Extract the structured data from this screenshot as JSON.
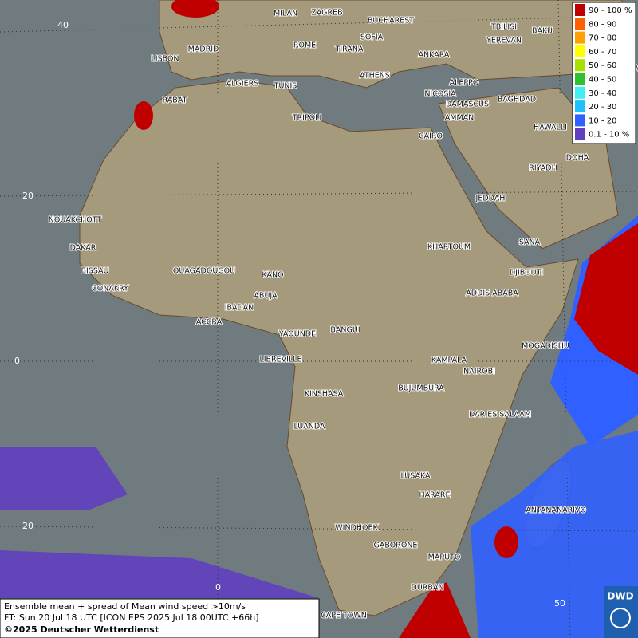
{
  "legend": {
    "entries": [
      {
        "label": "90 - 100 %",
        "color": "#c00000"
      },
      {
        "label": "80 - 90",
        "color": "#ff6000"
      },
      {
        "label": "70 - 80",
        "color": "#ffa000"
      },
      {
        "label": "60 - 70",
        "color": "#ffff00"
      },
      {
        "label": "50 - 60",
        "color": "#a8e000"
      },
      {
        "label": "40 - 50",
        "color": "#30c030"
      },
      {
        "label": "30 - 40",
        "color": "#40f0f0"
      },
      {
        "label": "20 - 30",
        "color": "#20c0ff"
      },
      {
        "label": "10 - 20",
        "color": "#3060ff"
      },
      {
        "label": "0.1 - 10 %",
        "color": "#6040c0"
      }
    ]
  },
  "map": {
    "cities": [
      "MILAN",
      "ZAGREB",
      "BUCHAREST",
      "SOFIA",
      "ROME",
      "TIRANA",
      "ANKARA",
      "TBILISI",
      "BAKU",
      "YEREVAN",
      "TEHRA",
      "LISBON",
      "MADRID",
      "ALGIERS",
      "TUNIS",
      "ATHENS",
      "ALEPPO",
      "NICOSIA",
      "RABAT",
      "BAGHDAD",
      "DAMASCUS",
      "AMMAN",
      "TRIPOLI",
      "CAIRO",
      "HAWALLI",
      "DOHA",
      "RIYADH",
      "JEDDAH",
      "NOUAKCHOTT",
      "SANA",
      "DAKAR",
      "KHARTOUM",
      "BISSAU",
      "DJIBOUTI",
      "OUAGADOUGOU",
      "KANO",
      "CONAKRY",
      "ABUJA",
      "ADDIS ABABA",
      "IBADAN",
      "ACCRA",
      "YAOUNDE",
      "BANGUI",
      "MOGADISHU",
      "LIBREVILLE",
      "KAMPALA",
      "NAIROBI",
      "KINSHASA",
      "BUJUMBURA",
      "DAR ES SALAAM",
      "LUANDA",
      "LUSAKA",
      "HARARE",
      "ANTANANARIVO",
      "WINDHOEK",
      "GABORONE",
      "MAPUTO",
      "DURBAN",
      "CAPE TOWN"
    ],
    "lat_labels": [
      "40",
      "20",
      "0",
      "20"
    ],
    "lon_labels": [
      "0",
      "50"
    ]
  },
  "caption": {
    "lines": [
      "Ensemble mean + spread of Mean wind speed >10m/s",
      "FT: Sun 20 Jul 18 UTC [ICON EPS 2025 Jul 18 00UTC +66h]",
      "©2025 Deutscher Wetterdienst"
    ]
  },
  "logo": {
    "text": "DWD"
  }
}
